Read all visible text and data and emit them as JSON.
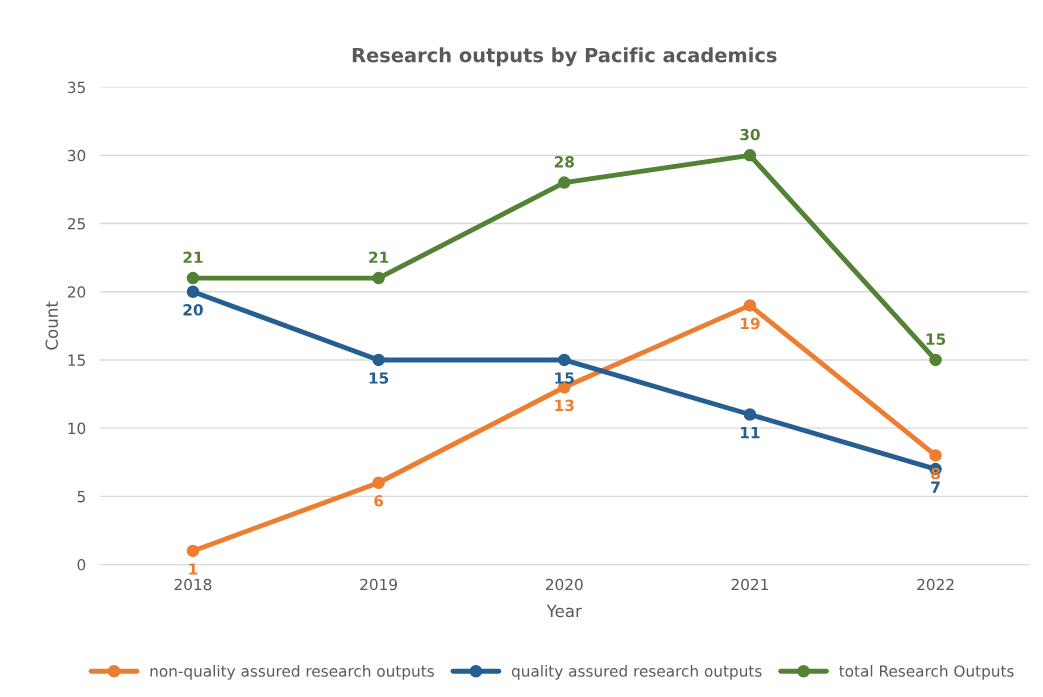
{
  "chart_data": {
    "type": "line",
    "title": "Research outputs by Pacific academics",
    "xlabel": "Year",
    "ylabel": "Count",
    "categories": [
      "2018",
      "2019",
      "2020",
      "2021",
      "2022"
    ],
    "series": [
      {
        "name": "non-quality assured research outputs",
        "color": "#ed7d31",
        "values": [
          1,
          6,
          13,
          19,
          8
        ]
      },
      {
        "name": "quality assured research outputs",
        "color": "#255e91",
        "values": [
          20,
          15,
          15,
          11,
          7
        ]
      },
      {
        "name": "total Research Outputs",
        "color": "#548235",
        "values": [
          21,
          21,
          28,
          30,
          15
        ]
      }
    ],
    "ylim": [
      0,
      35
    ],
    "yticks": [
      0,
      5,
      10,
      15,
      20,
      25,
      30,
      35
    ],
    "grid": "y",
    "legend": "bottom",
    "marker": "circle",
    "line_style": "solid",
    "data_labels": true
  }
}
